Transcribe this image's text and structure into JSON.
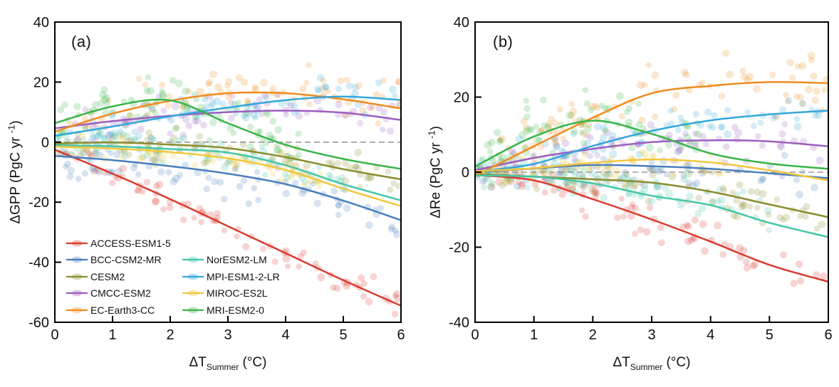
{
  "legend": {
    "col1": [
      "ACCESS-ESM1-5",
      "BCC-CSM2-MR",
      "CESM2",
      "CMCC-ESM2",
      "EC-Earth3-CC"
    ],
    "col2": [
      "NorESM2-LM",
      "MPI-ESM1-2-LR",
      "MIROC-ES2L",
      "MRI-ESM2-0"
    ]
  },
  "chart_data": [
    {
      "type": "scatter+line",
      "panel_label": "(a)",
      "xlabel_main": "ΔT",
      "xlabel_sub": "Summer",
      "xlabel_close": " (°C)",
      "ylabel_main": "ΔGPP (PgC yr ",
      "ylabel_sup": "-1",
      "ylabel_close": ")",
      "xlim": [
        0,
        6
      ],
      "ylim": [
        -60,
        40
      ],
      "xticks": [
        0,
        1,
        2,
        3,
        4,
        5,
        6
      ],
      "yticks": [
        40,
        20,
        0,
        -20,
        -40,
        -60
      ],
      "zero_line": true,
      "x_samples": [
        0,
        1,
        2,
        3,
        4,
        5,
        6
      ],
      "series": [
        {
          "name": "ACCESS-ESM1-5",
          "color": "#D93B30",
          "values": [
            -2.5,
            -10.5,
            -19,
            -28,
            -37,
            -46,
            -54.5
          ],
          "scatter": {
            "count": 80,
            "sigma": 2.4,
            "xmin": 0,
            "xmax": 6,
            "bias": 0
          }
        },
        {
          "name": "BCC-CSM2-MR",
          "color": "#4A7EBB",
          "values": [
            -4.6,
            -6,
            -8,
            -10.5,
            -14,
            -19.5,
            -26
          ],
          "scatter": {
            "count": 80,
            "sigma": 3.2,
            "xmin": 0,
            "xmax": 6,
            "bias": -1.5
          }
        },
        {
          "name": "CESM2",
          "color": "#8A8E2F",
          "values": [
            -0.5,
            -0.1,
            -0.8,
            -2,
            -5,
            -9,
            -12.4
          ],
          "scatter": {
            "count": 75,
            "sigma": 2.6,
            "xmin": 0.2,
            "xmax": 6,
            "bias": -0.5
          }
        },
        {
          "name": "CMCC-ESM2",
          "color": "#9D5FBE",
          "values": [
            4.6,
            7,
            8.8,
            10,
            10.5,
            9.8,
            7.4
          ],
          "scatter": {
            "count": 68,
            "sigma": 3,
            "xmin": 0.3,
            "xmax": 6,
            "bias": 0
          }
        },
        {
          "name": "EC-Earth3-CC",
          "color": "#EF8C1F",
          "values": [
            3.5,
            9.5,
            13.8,
            16.3,
            16.3,
            14.3,
            11.2
          ],
          "scatter": {
            "count": 70,
            "sigma": 3.6,
            "xmin": 0.2,
            "xmax": 6,
            "bias": 1
          }
        },
        {
          "name": "NorESM2-LM",
          "color": "#45C6A8",
          "values": [
            -1,
            -1.4,
            -2.3,
            -3.5,
            -7.7,
            -14,
            -19.4
          ],
          "scatter": {
            "count": 90,
            "sigma": 2.2,
            "xmin": 0,
            "xmax": 5,
            "bias": 0
          }
        },
        {
          "name": "MPI-ESM1-2-LR",
          "color": "#35A7DB",
          "values": [
            2.1,
            5.2,
            8.6,
            11.5,
            14,
            15.2,
            14
          ],
          "scatter": {
            "count": 65,
            "sigma": 3,
            "xmin": 0.2,
            "xmax": 6,
            "bias": 0
          }
        },
        {
          "name": "MIROC-ES2L",
          "color": "#F2C73D",
          "values": [
            -1.5,
            -2.1,
            -3.3,
            -5.4,
            -9.3,
            -15.5,
            -21.3
          ],
          "scatter": {
            "count": 65,
            "sigma": 2.4,
            "xmin": 0.3,
            "xmax": 4.6,
            "bias": 0
          }
        },
        {
          "name": "MRI-ESM2-0",
          "color": "#3BB44A",
          "values": [
            6.3,
            11.9,
            13.9,
            6.3,
            -0.9,
            -5.6,
            -8.9
          ],
          "scatter": {
            "count": 85,
            "sigma": 3.8,
            "xmin": 0,
            "xmax": 4.3,
            "bias": 1
          }
        }
      ]
    },
    {
      "type": "scatter+line",
      "panel_label": "(b)",
      "xlabel_main": "ΔT",
      "xlabel_sub": "Summer",
      "xlabel_close": " (°C)",
      "ylabel_main": "ΔRe (PgC yr ",
      "ylabel_sup": "-1",
      "ylabel_close": ")",
      "xlim": [
        0,
        6
      ],
      "ylim": [
        -40,
        40
      ],
      "xticks": [
        0,
        1,
        2,
        3,
        4,
        5,
        6
      ],
      "yticks": [
        40,
        20,
        0,
        -20,
        -40
      ],
      "zero_line": true,
      "x_samples": [
        0,
        1,
        2,
        3,
        4,
        5,
        6
      ],
      "series": [
        {
          "name": "ACCESS-ESM1-5",
          "color": "#D93B30",
          "values": [
            -0.8,
            -2.2,
            -7.2,
            -12.6,
            -18.5,
            -24.7,
            -29.2
          ],
          "scatter": {
            "count": 80,
            "sigma": 2.2,
            "xmin": 0,
            "xmax": 6,
            "bias": 0
          }
        },
        {
          "name": "BCC-CSM2-MR",
          "color": "#4A7EBB",
          "values": [
            0,
            1,
            1.9,
            1.6,
            0.9,
            -0.3,
            -1.6
          ],
          "scatter": {
            "count": 70,
            "sigma": 2.4,
            "xmin": 0,
            "xmax": 6,
            "bias": -0.8
          }
        },
        {
          "name": "CESM2",
          "color": "#8A8E2F",
          "values": [
            -0.5,
            -1.2,
            -1.9,
            -2.8,
            -5.2,
            -8.6,
            -12
          ],
          "scatter": {
            "count": 75,
            "sigma": 2.6,
            "xmin": 0.3,
            "xmax": 6,
            "bias": -0.5
          }
        },
        {
          "name": "CMCC-ESM2",
          "color": "#9D5FBE",
          "values": [
            0.5,
            3.8,
            6.2,
            8,
            8.5,
            8.2,
            6.9
          ],
          "scatter": {
            "count": 65,
            "sigma": 2.6,
            "xmin": 0.5,
            "xmax": 6,
            "bias": 0
          }
        },
        {
          "name": "EC-Earth3-CC",
          "color": "#EF8C1F",
          "values": [
            -1,
            6.9,
            14.5,
            21,
            23,
            24,
            23.7
          ],
          "scatter": {
            "count": 85,
            "sigma": 4,
            "xmin": 0.3,
            "xmax": 6,
            "bias": 1
          }
        },
        {
          "name": "NorESM2-LM",
          "color": "#45C6A8",
          "values": [
            -0.9,
            -1.2,
            -3,
            -6.3,
            -8.8,
            -13.5,
            -17.3
          ],
          "scatter": {
            "count": 90,
            "sigma": 2.3,
            "xmin": 0,
            "xmax": 5,
            "bias": 1
          }
        },
        {
          "name": "MPI-ESM1-2-LR",
          "color": "#35A7DB",
          "values": [
            0.1,
            2.2,
            7,
            11,
            13.8,
            15.4,
            16.4
          ],
          "scatter": {
            "count": 65,
            "sigma": 3,
            "xmin": 0.3,
            "xmax": 6,
            "bias": 0
          }
        },
        {
          "name": "MIROC-ES2L",
          "color": "#F2C73D",
          "values": [
            0.2,
            1.1,
            2.5,
            3.4,
            2.6,
            0.5,
            -2.2
          ],
          "scatter": {
            "count": 60,
            "sigma": 1.8,
            "xmin": 0.3,
            "xmax": 4.2,
            "bias": 0
          }
        },
        {
          "name": "MRI-ESM2-0",
          "color": "#3BB44A",
          "values": [
            1.5,
            9.5,
            13.7,
            10.2,
            5,
            2.3,
            0.9
          ],
          "scatter": {
            "count": 80,
            "sigma": 3.6,
            "xmin": 0,
            "xmax": 3.8,
            "bias": 1
          }
        }
      ]
    }
  ]
}
